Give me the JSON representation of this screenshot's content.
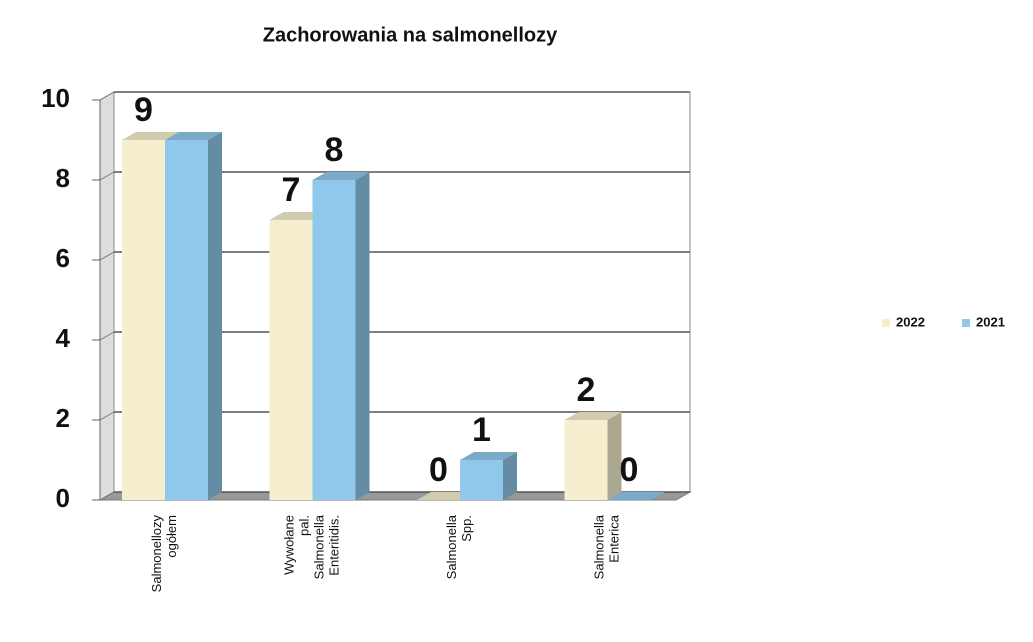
{
  "chart_data": {
    "type": "bar3d",
    "title": "Zachorowania na salmonellozy",
    "categories": [
      [
        "Salmonellozy",
        "ogółem"
      ],
      [
        "Wywołane",
        "pal.",
        "Salmonella",
        "Enteritidis."
      ],
      [
        "Salmonella",
        "Spp."
      ],
      [
        "Salmonella",
        "Enterica"
      ]
    ],
    "series": [
      {
        "name": "2022",
        "color": "#f6efcf",
        "values": [
          9,
          7,
          0,
          2
        ],
        "value_labels": [
          "9",
          "7",
          "0",
          "2"
        ]
      },
      {
        "name": "2021",
        "color": "#8fc8ea",
        "values": [
          9,
          8,
          1,
          0
        ],
        "value_labels": [
          null,
          "8",
          "1",
          "0"
        ]
      }
    ],
    "ylim": [
      0,
      10
    ],
    "yticks": [
      0,
      2,
      4,
      6,
      8,
      10
    ],
    "grid": true,
    "legend": "right"
  }
}
